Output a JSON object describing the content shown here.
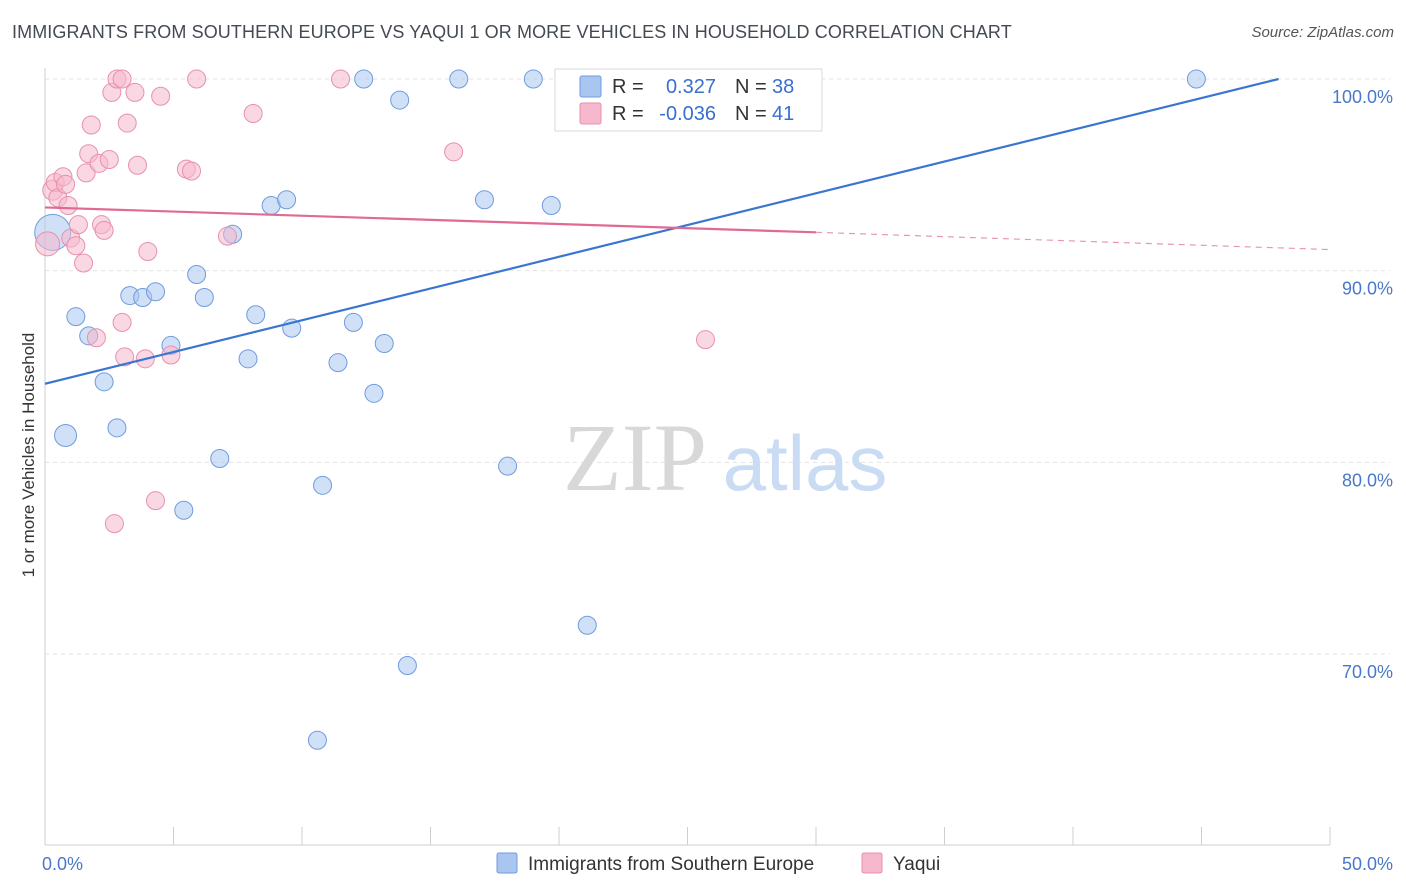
{
  "header": {
    "title": "IMMIGRANTS FROM SOUTHERN EUROPE VS YAQUI 1 OR MORE VEHICLES IN HOUSEHOLD CORRELATION CHART",
    "source": "Source: ZipAtlas.com"
  },
  "watermark": {
    "zip": "ZIP",
    "atlas": "atlas"
  },
  "legend_box": {
    "rows": [
      {
        "r_label": "R =",
        "r_value": "0.327",
        "n_label": "N =",
        "n_value": "38",
        "color": "#a9c6f0"
      },
      {
        "r_label": "R =",
        "r_value": "-0.036",
        "n_label": "N =",
        "n_value": "41",
        "color": "#f5b8cc"
      }
    ]
  },
  "chart_data": {
    "type": "scatter",
    "title": "IMMIGRANTS FROM SOUTHERN EUROPE VS YAQUI 1 OR MORE VEHICLES IN HOUSEHOLD CORRELATION CHART",
    "xlabel": "",
    "ylabel": "1 or more Vehicles in Household",
    "xlim": [
      0,
      50
    ],
    "ylim": [
      62,
      101.5
    ],
    "x_tick_labels": [
      "0.0%",
      "50.0%"
    ],
    "y_ticks": [
      70,
      80,
      90,
      100
    ],
    "y_tick_labels": [
      "70.0%",
      "80.0%",
      "90.0%",
      "100.0%"
    ],
    "grid": true,
    "legend_position": "bottom",
    "series": [
      {
        "name": "Immigrants from Southern Europe",
        "color": "#a9c6f0",
        "stroke": "#6f9be0",
        "trend": {
          "x": [
            0,
            48
          ],
          "y": [
            84.1,
            100.0
          ],
          "color": "#3a76d0",
          "dashed_from": null
        },
        "points": [
          [
            0.3,
            92.0,
            18
          ],
          [
            0.8,
            81.4,
            11
          ],
          [
            1.2,
            87.6,
            9
          ],
          [
            1.7,
            86.6,
            9
          ],
          [
            2.3,
            84.2,
            9
          ],
          [
            2.8,
            81.8,
            9
          ],
          [
            3.3,
            88.7,
            9
          ],
          [
            3.8,
            88.6,
            9
          ],
          [
            4.3,
            88.9,
            9
          ],
          [
            4.9,
            86.1,
            9
          ],
          [
            5.4,
            77.5,
            9
          ],
          [
            5.9,
            89.8,
            9
          ],
          [
            6.2,
            88.6,
            9
          ],
          [
            6.8,
            80.2,
            9
          ],
          [
            7.3,
            91.9,
            9
          ],
          [
            7.9,
            85.4,
            9
          ],
          [
            8.2,
            87.7,
            9
          ],
          [
            8.8,
            93.4,
            9
          ],
          [
            9.4,
            93.7,
            9
          ],
          [
            9.6,
            87.0,
            9
          ],
          [
            10.6,
            65.5,
            9
          ],
          [
            10.8,
            78.8,
            9
          ],
          [
            11.4,
            85.2,
            9
          ],
          [
            12.0,
            87.3,
            9
          ],
          [
            12.4,
            100.0,
            9
          ],
          [
            12.8,
            83.6,
            9
          ],
          [
            13.2,
            86.2,
            9
          ],
          [
            13.8,
            98.9,
            9
          ],
          [
            14.1,
            69.4,
            9
          ],
          [
            16.1,
            100.0,
            9
          ],
          [
            17.1,
            93.7,
            9
          ],
          [
            18.0,
            79.8,
            9
          ],
          [
            19.0,
            100.0,
            9
          ],
          [
            19.7,
            93.4,
            9
          ],
          [
            21.1,
            71.5,
            9
          ],
          [
            23.8,
            100.0,
            9
          ],
          [
            25.0,
            100.0,
            9
          ],
          [
            44.8,
            100.0,
            9
          ]
        ]
      },
      {
        "name": "Yaqui",
        "color": "#f5b8cc",
        "stroke": "#e890ac",
        "trend": {
          "x": [
            0,
            30,
            50
          ],
          "y": [
            93.3,
            92.0,
            91.1
          ],
          "color": "#e06a93",
          "dashed_from": 30
        },
        "points": [
          [
            0.1,
            91.4,
            12
          ],
          [
            0.3,
            94.2,
            10
          ],
          [
            0.4,
            94.6,
            9
          ],
          [
            0.5,
            93.8,
            9
          ],
          [
            0.7,
            94.9,
            9
          ],
          [
            0.8,
            94.5,
            9
          ],
          [
            0.9,
            93.4,
            9
          ],
          [
            1.0,
            91.7,
            9
          ],
          [
            1.2,
            91.3,
            9
          ],
          [
            1.3,
            92.4,
            9
          ],
          [
            1.5,
            90.4,
            9
          ],
          [
            1.6,
            95.1,
            9
          ],
          [
            1.7,
            96.1,
            9
          ],
          [
            1.8,
            97.6,
            9
          ],
          [
            2.0,
            86.5,
            9
          ],
          [
            2.1,
            95.6,
            9
          ],
          [
            2.2,
            92.4,
            9
          ],
          [
            2.3,
            92.1,
            9
          ],
          [
            2.5,
            95.8,
            9
          ],
          [
            2.6,
            99.3,
            9
          ],
          [
            2.7,
            76.8,
            9
          ],
          [
            2.8,
            100.0,
            9
          ],
          [
            3.0,
            100.0,
            9
          ],
          [
            3.0,
            87.3,
            9
          ],
          [
            3.1,
            85.5,
            9
          ],
          [
            3.2,
            97.7,
            9
          ],
          [
            3.5,
            99.3,
            9
          ],
          [
            3.6,
            95.5,
            9
          ],
          [
            3.9,
            85.4,
            9
          ],
          [
            4.0,
            91.0,
            9
          ],
          [
            4.3,
            78.0,
            9
          ],
          [
            4.5,
            99.1,
            9
          ],
          [
            4.9,
            85.6,
            9
          ],
          [
            5.5,
            95.3,
            9
          ],
          [
            5.7,
            95.2,
            9
          ],
          [
            5.9,
            100.0,
            9
          ],
          [
            7.1,
            91.8,
            9
          ],
          [
            8.1,
            98.2,
            9
          ],
          [
            11.5,
            100.0,
            9
          ],
          [
            15.9,
            96.2,
            9
          ],
          [
            25.7,
            86.4,
            9
          ]
        ]
      }
    ]
  }
}
